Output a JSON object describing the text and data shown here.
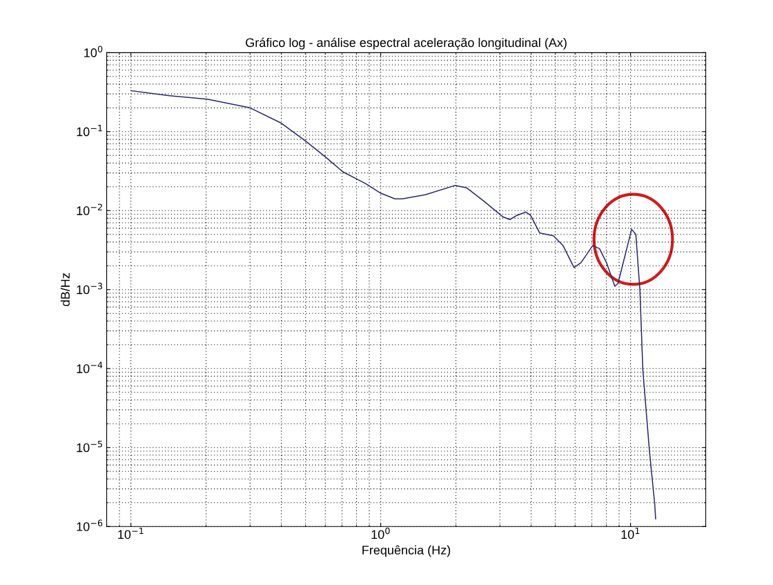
{
  "chart_data": {
    "type": "line",
    "title": "Gráfico log - análise espectral aceleração longitudinal (Ax)",
    "xlabel": "Frequência (Hz)",
    "ylabel": "dB/Hz",
    "log": "xy",
    "grid": true,
    "marker": "none",
    "line_style": "solid",
    "xlim": [
      0.08,
      20
    ],
    "ylim": [
      1e-06,
      1
    ],
    "xticks": [
      {
        "value": 0.1,
        "label": "10$^{−1}$"
      },
      {
        "value": 1,
        "label": "10$^{0}$"
      },
      {
        "value": 10,
        "label": "10$^{1}$"
      }
    ],
    "yticks": [
      {
        "value": 1e-06,
        "label": "10$^{−6}$"
      },
      {
        "value": 1e-05,
        "label": "10$^{−5}$"
      },
      {
        "value": 0.0001,
        "label": "10$^{−4}$"
      },
      {
        "value": 0.001,
        "label": "10$^{−3}$"
      },
      {
        "value": 0.01,
        "label": "10$^{−2}$"
      },
      {
        "value": 0.1,
        "label": "10$^{−1}$"
      },
      {
        "value": 1,
        "label": "10$^{0}$"
      }
    ],
    "series": [
      {
        "color": "#27276e",
        "x": [
          0.1,
          0.141,
          0.202,
          0.3,
          0.4,
          0.5,
          0.605,
          0.705,
          0.87,
          1.0,
          1.14,
          1.22,
          1.51,
          1.98,
          2.21,
          2.61,
          3.09,
          3.29,
          3.51,
          3.81,
          3.98,
          4.33,
          4.91,
          5.37,
          5.94,
          6.34,
          7.05,
          7.51,
          8.01,
          8.65,
          8.91,
          10.1,
          10.5,
          10.9,
          11.2,
          11.9,
          12.5,
          12.6
        ],
        "values": [
          0.33,
          0.286,
          0.258,
          0.2,
          0.128,
          0.076,
          0.047,
          0.031,
          0.022,
          0.0166,
          0.0141,
          0.0141,
          0.0159,
          0.0208,
          0.0194,
          0.0129,
          0.0083,
          0.0077,
          0.0087,
          0.0096,
          0.0087,
          0.0052,
          0.0048,
          0.0036,
          0.0019,
          0.0022,
          0.0036,
          0.0033,
          0.0022,
          0.0011,
          0.0012,
          0.0058,
          0.005,
          0.001,
          9.6e-05,
          9.1e-06,
          1.9e-06,
          1.25e-06
        ]
      }
    ]
  }
}
